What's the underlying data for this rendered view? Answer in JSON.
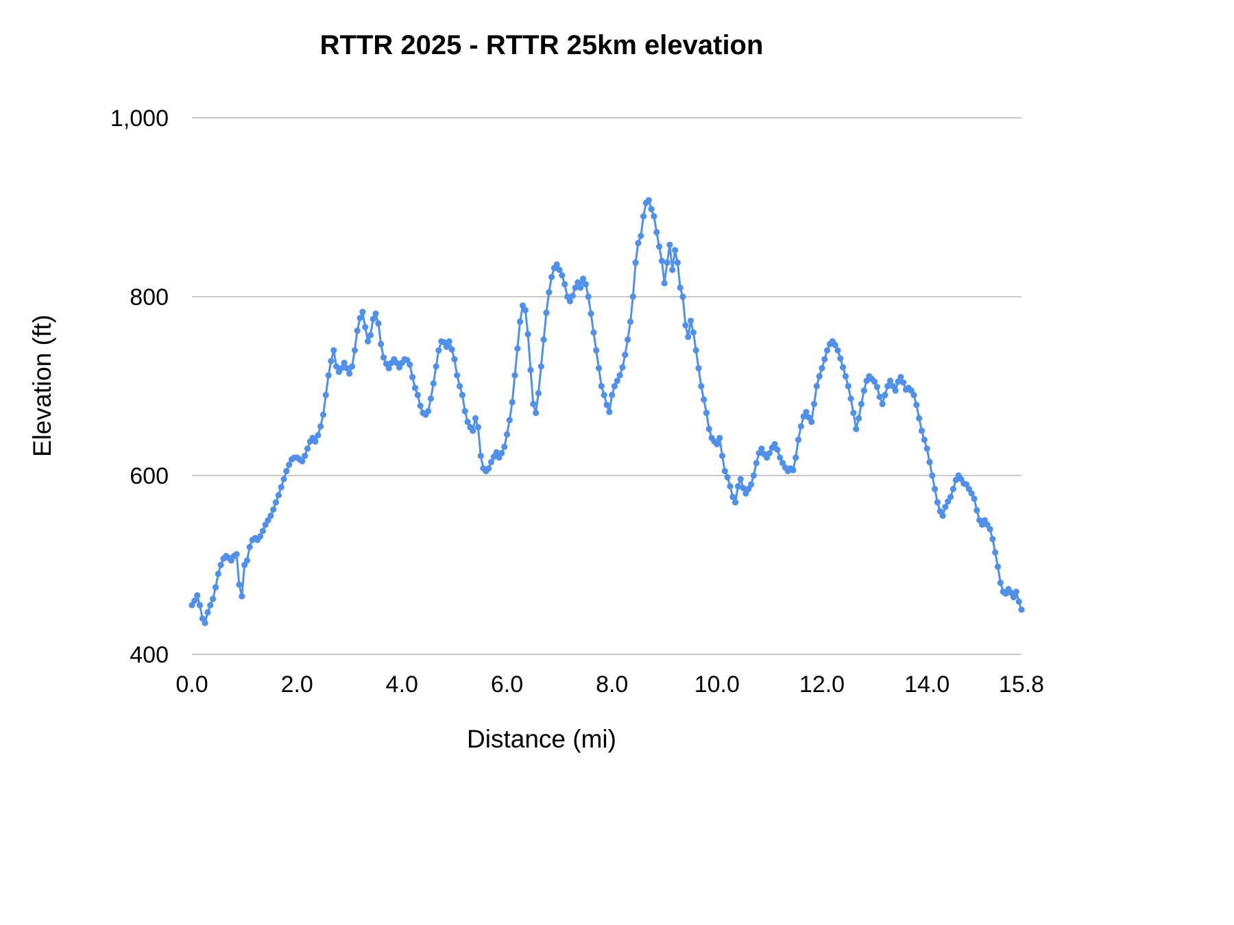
{
  "title": "RTTR 2025 - RTTR 25km elevation",
  "chart_data": {
    "type": "line",
    "title": "RTTR 2025 - RTTR 25km elevation",
    "xlabel": "Distance (mi)",
    "ylabel": "Elevation (ft)",
    "xlim": [
      0,
      15.8
    ],
    "ylim": [
      400,
      1000
    ],
    "grid": "horizontal",
    "legend": "none",
    "line_color": "#4f91ea",
    "gridline_color": "#c9c9c9",
    "marker": "circle",
    "x_ticks": [
      {
        "value": 0,
        "label": "0.0"
      },
      {
        "value": 2,
        "label": "2.0"
      },
      {
        "value": 4,
        "label": "4.0"
      },
      {
        "value": 6,
        "label": "6.0"
      },
      {
        "value": 8,
        "label": "8.0"
      },
      {
        "value": 10,
        "label": "10.0"
      },
      {
        "value": 12,
        "label": "12.0"
      },
      {
        "value": 14,
        "label": "14.0"
      },
      {
        "value": 15.8,
        "label": "15.8"
      }
    ],
    "y_ticks": [
      {
        "value": 400,
        "label": "400"
      },
      {
        "value": 600,
        "label": "600"
      },
      {
        "value": 800,
        "label": "800"
      },
      {
        "value": 1000,
        "label": "1,000"
      }
    ],
    "x_start": 0,
    "x_step": 0.05,
    "x_units": "mi",
    "y_units": "ft",
    "elevations_ft": [
      455,
      460,
      466,
      455,
      440,
      435,
      447,
      455,
      462,
      475,
      490,
      500,
      507,
      510,
      508,
      505,
      510,
      512,
      478,
      465,
      500,
      505,
      520,
      528,
      530,
      528,
      532,
      538,
      545,
      550,
      555,
      562,
      570,
      578,
      587,
      596,
      605,
      612,
      618,
      620,
      620,
      618,
      616,
      622,
      630,
      638,
      642,
      638,
      645,
      655,
      668,
      690,
      712,
      728,
      740,
      722,
      716,
      720,
      726,
      720,
      714,
      722,
      740,
      762,
      776,
      783,
      766,
      750,
      757,
      775,
      781,
      770,
      747,
      732,
      725,
      720,
      726,
      730,
      726,
      721,
      726,
      730,
      729,
      724,
      710,
      698,
      690,
      678,
      670,
      668,
      672,
      686,
      703,
      722,
      740,
      750,
      749,
      744,
      750,
      741,
      730,
      712,
      700,
      690,
      672,
      660,
      654,
      650,
      664,
      654,
      622,
      608,
      605,
      608,
      615,
      621,
      626,
      620,
      625,
      632,
      646,
      662,
      682,
      712,
      742,
      772,
      790,
      785,
      758,
      718,
      680,
      670,
      692,
      722,
      752,
      782,
      805,
      822,
      832,
      836,
      830,
      824,
      814,
      800,
      795,
      801,
      810,
      816,
      810,
      820,
      814,
      800,
      781,
      760,
      740,
      720,
      700,
      690,
      679,
      671,
      690,
      700,
      706,
      712,
      721,
      735,
      752,
      772,
      800,
      838,
      860,
      868,
      890,
      905,
      908,
      898,
      890,
      872,
      856,
      840,
      815,
      838,
      858,
      830,
      852,
      838,
      810,
      800,
      768,
      755,
      773,
      760,
      740,
      720,
      700,
      685,
      670,
      652,
      642,
      638,
      635,
      642,
      622,
      605,
      598,
      588,
      576,
      570,
      588,
      596,
      586,
      580,
      585,
      590,
      600,
      614,
      625,
      630,
      624,
      620,
      625,
      631,
      635,
      629,
      620,
      614,
      609,
      605,
      608,
      606,
      620,
      640,
      655,
      666,
      671,
      665,
      660,
      680,
      700,
      711,
      720,
      730,
      740,
      747,
      750,
      746,
      740,
      731,
      721,
      711,
      700,
      686,
      670,
      652,
      664,
      680,
      695,
      706,
      711,
      708,
      705,
      699,
      688,
      680,
      690,
      700,
      706,
      700,
      695,
      705,
      710,
      704,
      696,
      698,
      695,
      690,
      679,
      664,
      650,
      640,
      630,
      615,
      600,
      585,
      570,
      560,
      555,
      565,
      571,
      576,
      585,
      595,
      600,
      596,
      591,
      590,
      585,
      580,
      574,
      561,
      550,
      545,
      550,
      545,
      540,
      529,
      514,
      498,
      480,
      470,
      468,
      473,
      469,
      464,
      470,
      459,
      450
    ]
  }
}
